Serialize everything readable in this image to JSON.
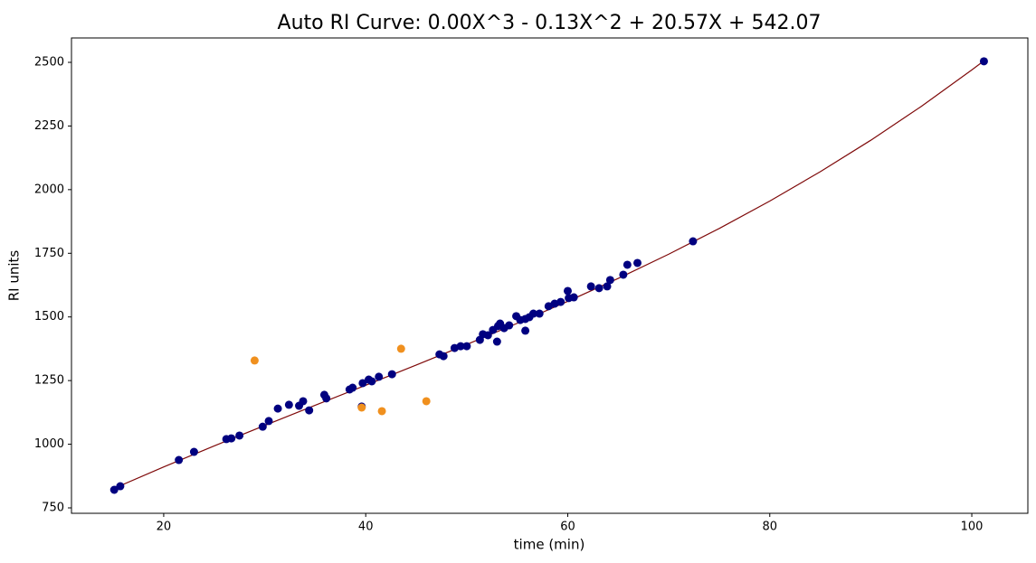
{
  "chart_data": {
    "type": "scatter",
    "title": "Auto RI Curve: 0.00X^3 - 0.13X^2 + 20.57X + 542.07",
    "x_label": "time (min)",
    "y_label": "RI units",
    "xlim": [
      10.87,
      105.55
    ],
    "xticks": [
      20,
      40,
      60,
      80,
      100
    ],
    "ylim": [
      728.7,
      2595.8
    ],
    "yticks": [
      750,
      1000,
      1250,
      1500,
      1750,
      2000,
      2250,
      2500
    ],
    "series": [
      {
        "type": "line",
        "color": "#7f0a0a",
        "x": [
          15,
          20,
          25,
          30,
          35,
          40,
          45,
          50,
          55,
          60,
          65,
          70,
          75,
          80,
          85,
          90,
          95,
          100,
          101
        ],
        "values": [
          825.3,
          910.8,
          993.4,
          1073.8,
          1153.0,
          1231.8,
          1311.2,
          1392.0,
          1475.0,
          1561.2,
          1651.5,
          1746.6,
          1847.6,
          1955.2,
          2070.4,
          2194.0,
          2327.0,
          2470.1,
          2500
        ]
      },
      {
        "type": "scatter",
        "color": "#000080",
        "x": [
          15.1,
          15.7,
          21.5,
          23.0,
          26.2,
          26.7,
          27.5,
          29.8,
          30.4,
          31.3,
          32.4,
          33.4,
          33.8,
          34.4,
          35.9,
          36.1,
          38.4,
          38.7,
          39.6,
          39.7,
          40.3,
          40.6,
          41.3,
          42.6,
          47.3,
          47.7,
          48.8,
          49.4,
          50.0,
          51.3,
          51.6,
          52.1,
          52.6,
          53.0,
          53.1,
          53.3,
          53.7,
          54.2,
          54.9,
          55.3,
          55.8,
          55.8,
          56.2,
          56.6,
          57.2,
          58.1,
          58.7,
          59.3,
          60.0,
          60.1,
          60.6,
          62.3,
          63.1,
          63.9,
          64.2,
          65.5,
          65.9,
          66.9,
          72.4,
          101.2
        ],
        "values": [
          821,
          835,
          938,
          970,
          1020,
          1023,
          1034,
          1069,
          1091,
          1140,
          1155,
          1151,
          1169,
          1133,
          1194,
          1180,
          1215,
          1222,
          1148,
          1240,
          1254,
          1247,
          1265,
          1275,
          1353,
          1346,
          1378,
          1385,
          1385,
          1410,
          1432,
          1428,
          1449,
          1403,
          1464,
          1474,
          1456,
          1467,
          1503,
          1488,
          1492,
          1446,
          1499,
          1513,
          1513,
          1542,
          1552,
          1559,
          1602,
          1574,
          1577,
          1620,
          1613,
          1620,
          1645,
          1666,
          1705,
          1712,
          1797,
          2504
        ]
      },
      {
        "type": "scatter",
        "color": "#f0901e",
        "x": [
          29.0,
          43.5,
          39.6,
          41.6,
          46.0
        ],
        "values": [
          1329,
          1375,
          1144,
          1130,
          1169
        ]
      }
    ]
  }
}
